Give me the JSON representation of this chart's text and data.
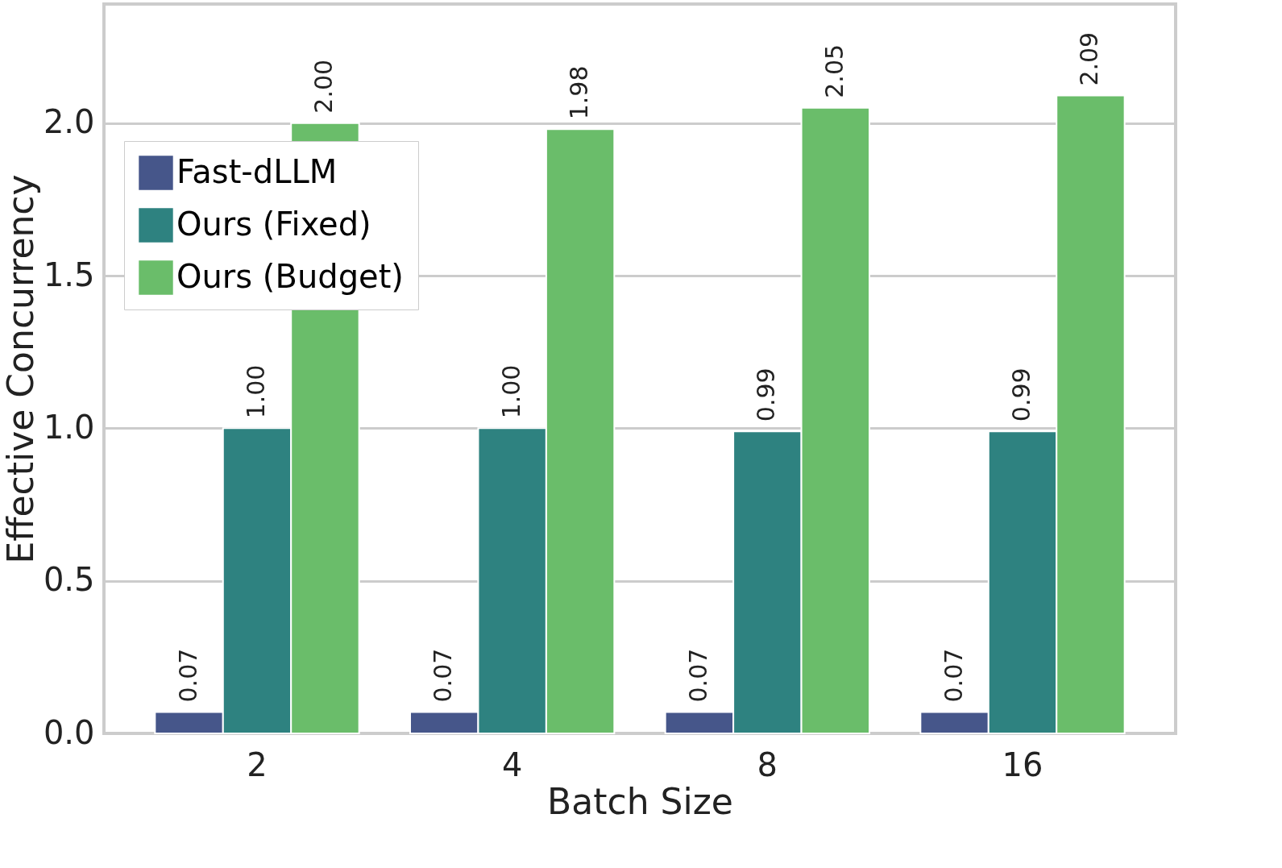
{
  "chart_data": {
    "type": "bar",
    "xlabel": "Batch Size",
    "ylabel": "Effective Concurrency",
    "categories": [
      "2",
      "4",
      "8",
      "16"
    ],
    "series": [
      {
        "name": "Fast-dLLM",
        "color": "#46568a",
        "values": [
          0.07,
          0.07,
          0.07,
          0.07
        ],
        "value_labels": [
          "0.07",
          "0.07",
          "0.07",
          "0.07"
        ]
      },
      {
        "name": "Ours (Fixed)",
        "color": "#2e8280",
        "values": [
          1.0,
          1.0,
          0.99,
          0.99
        ],
        "value_labels": [
          "1.00",
          "1.00",
          "0.99",
          "0.99"
        ]
      },
      {
        "name": "Ours (Budget)",
        "color": "#6abd6a",
        "values": [
          2.0,
          1.98,
          2.05,
          2.09
        ],
        "value_labels": [
          "2.00",
          "1.98",
          "2.05",
          "2.09"
        ]
      }
    ],
    "ylim": [
      0,
      2.39
    ],
    "yticks": [
      {
        "value": 0,
        "label": "0.0"
      },
      0.5,
      {
        "value": 1,
        "label": "1.0"
      },
      1.5,
      {
        "value": 2,
        "label": "2.0"
      }
    ],
    "grid": "y",
    "legend": "top left"
  }
}
